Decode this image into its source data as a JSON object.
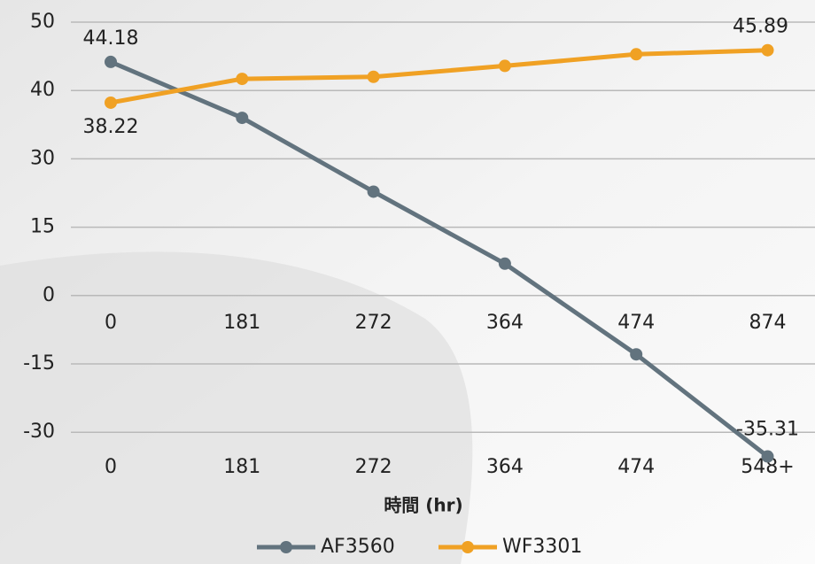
{
  "chart_data": {
    "type": "line",
    "x_label": "時間 (hr)",
    "categories": [
      "0",
      "181",
      "272",
      "364",
      "474",
      "548+"
    ],
    "secondary_categories": [
      "0",
      "181",
      "272",
      "364",
      "474",
      "874"
    ],
    "series": [
      {
        "name": "AF3560",
        "color": "#62737e",
        "values": [
          44.18,
          36.0,
          22.8,
          7.0,
          -12.9,
          -35.31
        ],
        "value_labels": [
          "44.18",
          null,
          null,
          null,
          null,
          "-35.31"
        ]
      },
      {
        "name": "WF3301",
        "color": "#f0a124",
        "values": [
          38.22,
          41.7,
          42.0,
          43.6,
          45.3,
          45.89
        ],
        "value_labels": [
          "38.22",
          null,
          null,
          null,
          null,
          "45.89"
        ]
      }
    ],
    "ylim": [
      -30,
      50
    ],
    "yticks": [
      50,
      40,
      30,
      15,
      0,
      -15,
      -30
    ],
    "grid": true,
    "legend": "bottom"
  }
}
